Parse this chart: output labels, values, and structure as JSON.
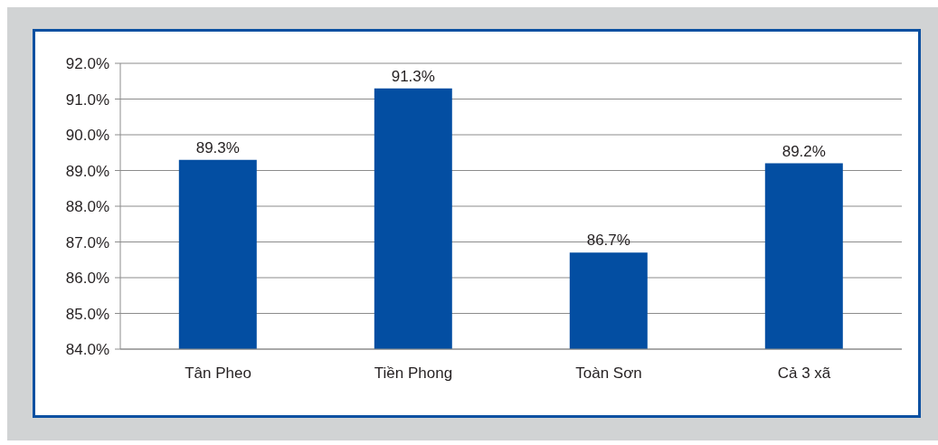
{
  "chart_data": {
    "type": "bar",
    "categories": [
      "Tân Pheo",
      "Tiền Phong",
      "Toàn Sơn",
      "Cả 3 xã"
    ],
    "values": [
      89.3,
      91.3,
      86.7,
      89.2
    ],
    "color": "#034ea2",
    "ylim": [
      84,
      92
    ],
    "yticks": [
      {
        "value": 84,
        "label": "84.0%"
      },
      {
        "value": 85,
        "label": "85.0%"
      },
      {
        "value": 86,
        "label": "86.0%"
      },
      {
        "value": 87,
        "label": "87.0%"
      },
      {
        "value": 88,
        "label": "88.0%"
      },
      {
        "value": 89,
        "label": "89.0%"
      },
      {
        "value": 90,
        "label": "90.0%"
      },
      {
        "value": 91,
        "label": "91.0%"
      },
      {
        "value": 92,
        "label": "92.0%"
      }
    ],
    "grid": "y",
    "value_labels": [
      "89.3%",
      "91.3%",
      "86.7%",
      "89.2%"
    ]
  }
}
